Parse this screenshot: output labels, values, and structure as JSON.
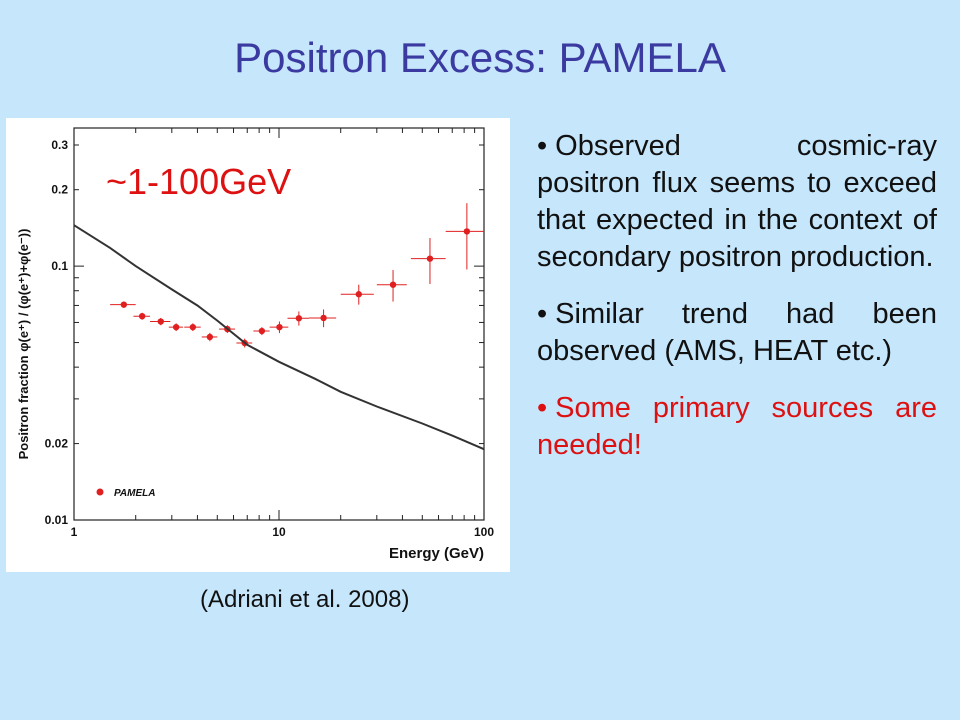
{
  "slide": {
    "title": "Positron Excess: PAMELA",
    "caption": "(Adriani et al. 2008)",
    "bullet_symbol": "•",
    "bullets": [
      {
        "text": "Observed cosmic-ray positron flux seems to exceed that expected in the context of secondary positron production.",
        "color": "#111111"
      },
      {
        "text": "Similar trend had been observed (AMS, HEAT etc.)",
        "color": "#111111"
      },
      {
        "text": "Some primary sources are needed!",
        "color": "#dd1111"
      }
    ]
  },
  "chart_data": {
    "type": "scatter",
    "annotation": "~1-100GeV",
    "annotation_color": "#dd1111",
    "xlabel": "Energy (GeV)",
    "ylabel": "Positron fraction   φ(e⁺) / (φ(e⁺)+φ(e⁻))",
    "xscale": "log",
    "yscale": "log",
    "xlim": [
      1,
      100
    ],
    "ylim": [
      0.01,
      0.35
    ],
    "x_ticks": [
      1,
      10,
      100
    ],
    "x_tick_labels": [
      "1",
      "10",
      "100"
    ],
    "y_ticks": [
      0.01,
      0.02,
      0.1,
      0.2,
      0.3
    ],
    "y_tick_labels": [
      "0.01",
      "0.02",
      "0.1",
      "0.2",
      "0.3"
    ],
    "legend": {
      "label": "PAMELA",
      "position": "bottom-left",
      "color": "#e02020"
    },
    "series": [
      {
        "name": "PAMELA",
        "kind": "points",
        "color": "#e02020",
        "x": [
          1.75,
          2.15,
          2.65,
          3.15,
          3.8,
          4.6,
          5.6,
          6.8,
          8.25,
          10.05,
          12.5,
          16.5,
          24.5,
          36.0,
          54.5,
          82.5
        ],
        "y": [
          0.0705,
          0.0635,
          0.0605,
          0.0575,
          0.0575,
          0.0526,
          0.0565,
          0.0498,
          0.0555,
          0.0575,
          0.0623,
          0.0625,
          0.0775,
          0.0845,
          0.107,
          0.137
        ],
        "x_err": [
          0.25,
          0.2,
          0.3,
          0.25,
          0.35,
          0.4,
          0.5,
          0.6,
          0.75,
          1.05,
          1.5,
          2.5,
          4.5,
          6.0,
          10.5,
          17.5
        ],
        "y_err": [
          0.002,
          0.002,
          0.002,
          0.002,
          0.002,
          0.002,
          0.002,
          0.002,
          0.002,
          0.003,
          0.004,
          0.005,
          0.007,
          0.012,
          0.022,
          0.04
        ]
      },
      {
        "name": "",
        "kind": "line",
        "color": "#333333",
        "x": [
          1.0,
          1.5,
          2.0,
          3.0,
          4.0,
          5.0,
          7.0,
          10.0,
          15.0,
          20.0,
          30.0,
          50.0,
          70.0,
          100.0
        ],
        "y": [
          0.145,
          0.118,
          0.1,
          0.081,
          0.07,
          0.061,
          0.049,
          0.042,
          0.036,
          0.032,
          0.028,
          0.024,
          0.0215,
          0.019
        ]
      }
    ]
  }
}
